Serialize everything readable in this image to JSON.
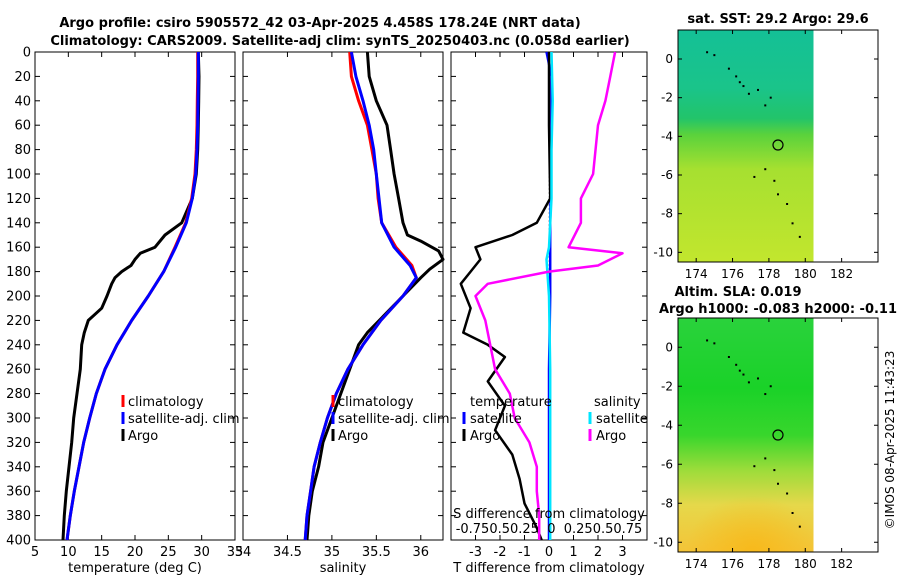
{
  "figure": {
    "title_line1": "Argo profile: csiro 5905572_42 03-Apr-2025 4.458S 178.24E (NRT data)",
    "title_line2": "Climatology: CARS2009. Satellite-adj clim: synTS_20250403.nc (0.058d earlier)",
    "watermark": "©IMOS 08-Apr-2025 11:43:23"
  },
  "colors": {
    "climatology": "#ff0000",
    "satellite": "#0000ff",
    "argo": "#000000",
    "s_satellite": "#00e5ff",
    "s_argo": "#ff00ff"
  },
  "chart_data": [
    {
      "type": "line",
      "id": "temperature",
      "xlabel": "temperature (deg C)",
      "xlim": [
        5,
        35
      ],
      "xticks": [
        5,
        10,
        15,
        20,
        25,
        30,
        35
      ],
      "ylim": [
        0,
        400
      ],
      "yticks": [
        0,
        20,
        40,
        60,
        80,
        100,
        120,
        140,
        160,
        180,
        200,
        220,
        240,
        260,
        280,
        300,
        320,
        340,
        360,
        380,
        400
      ],
      "legend": [
        "climatology",
        "satellite-adj. clim",
        "Argo"
      ],
      "series": [
        {
          "name": "climatology",
          "color": "#ff0000",
          "points": [
            [
              29.4,
              0
            ],
            [
              29.4,
              20
            ],
            [
              29.35,
              40
            ],
            [
              29.3,
              60
            ],
            [
              29.2,
              80
            ],
            [
              29.0,
              100
            ],
            [
              28.5,
              120
            ],
            [
              27.6,
              140
            ],
            [
              26.0,
              160
            ],
            [
              24.3,
              180
            ],
            [
              22.0,
              200
            ],
            [
              19.5,
              220
            ],
            [
              17.3,
              240
            ],
            [
              15.5,
              260
            ],
            [
              14.2,
              280
            ],
            [
              13.2,
              300
            ],
            [
              12.3,
              320
            ],
            [
              11.6,
              340
            ],
            [
              10.9,
              360
            ],
            [
              10.3,
              380
            ],
            [
              9.8,
              400
            ]
          ]
        },
        {
          "name": "satellite-adj. clim",
          "color": "#0000ff",
          "points": [
            [
              29.5,
              0
            ],
            [
              29.5,
              20
            ],
            [
              29.45,
              40
            ],
            [
              29.4,
              60
            ],
            [
              29.3,
              80
            ],
            [
              29.1,
              100
            ],
            [
              28.6,
              120
            ],
            [
              27.7,
              140
            ],
            [
              26.1,
              160
            ],
            [
              24.3,
              180
            ],
            [
              22.0,
              200
            ],
            [
              19.5,
              220
            ],
            [
              17.3,
              240
            ],
            [
              15.5,
              260
            ],
            [
              14.2,
              280
            ],
            [
              13.2,
              300
            ],
            [
              12.3,
              320
            ],
            [
              11.6,
              340
            ],
            [
              10.9,
              360
            ],
            [
              10.3,
              380
            ],
            [
              9.8,
              400
            ]
          ]
        },
        {
          "name": "Argo",
          "color": "#000000",
          "points": [
            [
              29.5,
              0
            ],
            [
              29.6,
              20
            ],
            [
              29.55,
              40
            ],
            [
              29.5,
              60
            ],
            [
              29.4,
              80
            ],
            [
              29.2,
              100
            ],
            [
              28.6,
              120
            ],
            [
              27.0,
              140
            ],
            [
              24.5,
              150
            ],
            [
              23.0,
              160
            ],
            [
              20.8,
              165
            ],
            [
              20.0,
              170
            ],
            [
              19.4,
              175
            ],
            [
              18.0,
              180
            ],
            [
              17.0,
              185
            ],
            [
              16.5,
              190
            ],
            [
              15.8,
              200
            ],
            [
              15.0,
              210
            ],
            [
              14.0,
              215
            ],
            [
              13.0,
              220
            ],
            [
              12.4,
              230
            ],
            [
              12.0,
              240
            ],
            [
              11.8,
              260
            ],
            [
              11.3,
              280
            ],
            [
              10.8,
              300
            ],
            [
              10.5,
              320
            ],
            [
              10.1,
              340
            ],
            [
              9.7,
              360
            ],
            [
              9.4,
              380
            ],
            [
              9.2,
              400
            ]
          ]
        }
      ]
    },
    {
      "type": "line",
      "id": "salinity",
      "xlabel": "salinity",
      "xlim": [
        34,
        36.25
      ],
      "xticks": [
        34,
        34.5,
        35,
        35.5,
        36
      ],
      "xtick_labels": [
        "34",
        "34.5",
        "35",
        "35.5",
        "36"
      ],
      "ylim": [
        0,
        400
      ],
      "legend": [
        "climatology",
        "satellite-adj. clim",
        "Argo"
      ],
      "series": [
        {
          "name": "climatology",
          "color": "#ff0000",
          "points": [
            [
              35.2,
              0
            ],
            [
              35.22,
              20
            ],
            [
              35.3,
              40
            ],
            [
              35.4,
              60
            ],
            [
              35.45,
              80
            ],
            [
              35.5,
              100
            ],
            [
              35.52,
              120
            ],
            [
              35.56,
              140
            ],
            [
              35.72,
              160
            ],
            [
              35.9,
              175
            ],
            [
              35.95,
              185
            ],
            [
              35.8,
              200
            ],
            [
              35.55,
              220
            ],
            [
              35.35,
              240
            ],
            [
              35.18,
              260
            ],
            [
              35.05,
              280
            ],
            [
              34.95,
              300
            ],
            [
              34.87,
              320
            ],
            [
              34.8,
              340
            ],
            [
              34.76,
              360
            ],
            [
              34.72,
              380
            ],
            [
              34.7,
              400
            ]
          ]
        },
        {
          "name": "satellite-adj. clim",
          "color": "#0000ff",
          "points": [
            [
              35.22,
              0
            ],
            [
              35.27,
              20
            ],
            [
              35.35,
              40
            ],
            [
              35.42,
              60
            ],
            [
              35.47,
              80
            ],
            [
              35.5,
              100
            ],
            [
              35.53,
              120
            ],
            [
              35.56,
              140
            ],
            [
              35.7,
              160
            ],
            [
              35.88,
              175
            ],
            [
              35.95,
              185
            ],
            [
              35.8,
              200
            ],
            [
              35.55,
              220
            ],
            [
              35.35,
              240
            ],
            [
              35.18,
              260
            ],
            [
              35.05,
              280
            ],
            [
              34.95,
              300
            ],
            [
              34.87,
              320
            ],
            [
              34.8,
              340
            ],
            [
              34.76,
              360
            ],
            [
              34.72,
              380
            ],
            [
              34.7,
              400
            ]
          ]
        },
        {
          "name": "Argo",
          "color": "#000000",
          "points": [
            [
              35.4,
              0
            ],
            [
              35.42,
              20
            ],
            [
              35.5,
              40
            ],
            [
              35.62,
              60
            ],
            [
              35.66,
              80
            ],
            [
              35.7,
              100
            ],
            [
              35.75,
              120
            ],
            [
              35.8,
              140
            ],
            [
              35.85,
              150
            ],
            [
              36.0,
              155
            ],
            [
              36.2,
              163
            ],
            [
              36.25,
              170
            ],
            [
              36.1,
              178
            ],
            [
              36.0,
              185
            ],
            [
              35.8,
              200
            ],
            [
              35.6,
              215
            ],
            [
              35.4,
              230
            ],
            [
              35.3,
              240
            ],
            [
              35.2,
              260
            ],
            [
              35.1,
              280
            ],
            [
              35.0,
              300
            ],
            [
              34.9,
              320
            ],
            [
              34.85,
              340
            ],
            [
              34.78,
              360
            ],
            [
              34.74,
              380
            ],
            [
              34.72,
              400
            ]
          ]
        }
      ]
    },
    {
      "type": "line",
      "id": "difference",
      "xlabel": "T difference from climatology",
      "top_xlabel": "S difference from climatology",
      "xlim": [
        -4,
        4
      ],
      "xticks": [
        -3,
        -2,
        -1,
        0,
        1,
        2,
        3
      ],
      "xtick_labels": [
        "-3",
        "-2",
        "-1",
        "0",
        "1",
        "2",
        "3"
      ],
      "top_xtick_labels": "-0.750.50.25  0  0.250.50.75",
      "ylim": [
        0,
        400
      ],
      "legend_temperature_title": "temperature",
      "legend_salinity_title": "salinity",
      "legend_temperature": [
        "satellite",
        "Argo"
      ],
      "legend_salinity": [
        "satellite",
        "Argo"
      ],
      "series": [
        {
          "name": "T satellite",
          "color": "#0000ff",
          "points": [
            [
              -0.1,
              0
            ],
            [
              0.1,
              20
            ],
            [
              0.1,
              60
            ],
            [
              0.08,
              100
            ],
            [
              0.05,
              140
            ],
            [
              0.05,
              200
            ],
            [
              0.0,
              260
            ],
            [
              0.0,
              320
            ],
            [
              0.0,
              400
            ]
          ]
        },
        {
          "name": "T Argo",
          "color": "#000000",
          "points": [
            [
              0.0,
              0
            ],
            [
              0.0,
              60
            ],
            [
              0.05,
              120
            ],
            [
              -0.5,
              140
            ],
            [
              -1.5,
              150
            ],
            [
              -3.0,
              160
            ],
            [
              -2.8,
              170
            ],
            [
              -3.2,
              180
            ],
            [
              -3.6,
              190
            ],
            [
              -3.2,
              210
            ],
            [
              -3.5,
              230
            ],
            [
              -2.5,
              240
            ],
            [
              -1.8,
              250
            ],
            [
              -2.5,
              270
            ],
            [
              -1.8,
              290
            ],
            [
              -2.2,
              310
            ],
            [
              -1.5,
              330
            ],
            [
              -1.2,
              350
            ],
            [
              -1.0,
              370
            ],
            [
              -0.5,
              390
            ],
            [
              -0.3,
              400
            ]
          ]
        },
        {
          "name": "S satellite",
          "color": "#00e5ff",
          "points": [
            [
              0.1,
              0
            ],
            [
              0.15,
              40
            ],
            [
              0.1,
              80
            ],
            [
              0.1,
              120
            ],
            [
              0.0,
              160
            ],
            [
              -0.1,
              170
            ],
            [
              0.0,
              200
            ],
            [
              0.05,
              260
            ],
            [
              0.05,
              320
            ],
            [
              0.05,
              400
            ]
          ]
        },
        {
          "name": "S Argo",
          "color": "#ff00ff",
          "points": [
            [
              2.7,
              0
            ],
            [
              2.5,
              20
            ],
            [
              2.3,
              40
            ],
            [
              2.0,
              60
            ],
            [
              1.8,
              100
            ],
            [
              1.3,
              120
            ],
            [
              1.3,
              140
            ],
            [
              0.8,
              160
            ],
            [
              3.0,
              165
            ],
            [
              2.0,
              175
            ],
            [
              0.0,
              180
            ],
            [
              -2.5,
              190
            ],
            [
              -3.0,
              200
            ],
            [
              -2.6,
              220
            ],
            [
              -2.4,
              240
            ],
            [
              -2.2,
              260
            ],
            [
              -1.6,
              280
            ],
            [
              -1.4,
              300
            ],
            [
              -0.8,
              320
            ],
            [
              -0.5,
              340
            ],
            [
              -0.5,
              360
            ],
            [
              -0.4,
              380
            ],
            [
              -0.4,
              400
            ]
          ]
        }
      ]
    },
    {
      "type": "heatmap",
      "id": "sst_map",
      "title": "sat. SST: 29.2 Argo: 29.6",
      "xlim": [
        173,
        184
      ],
      "xticks": [
        174,
        176,
        178,
        180,
        182
      ],
      "ylim": [
        -10.5,
        1.5
      ],
      "yticks": [
        0,
        -2,
        -4,
        -6,
        -8,
        -10
      ],
      "argo_position": {
        "lon": 178.24,
        "lat": -4.458
      }
    },
    {
      "type": "heatmap",
      "id": "sla_map",
      "title": "Altim. SLA: 0.019",
      "subtitle": "Argo h1000: -0.083 h2000: -0.11",
      "xlim": [
        173,
        184
      ],
      "xticks": [
        174,
        176,
        178,
        180,
        182
      ],
      "ylim": [
        -10.5,
        1.5
      ],
      "yticks": [
        0,
        -2,
        -4,
        -6,
        -8,
        -10
      ],
      "argo_position": {
        "lon": 178.24,
        "lat": -4.458
      }
    }
  ]
}
